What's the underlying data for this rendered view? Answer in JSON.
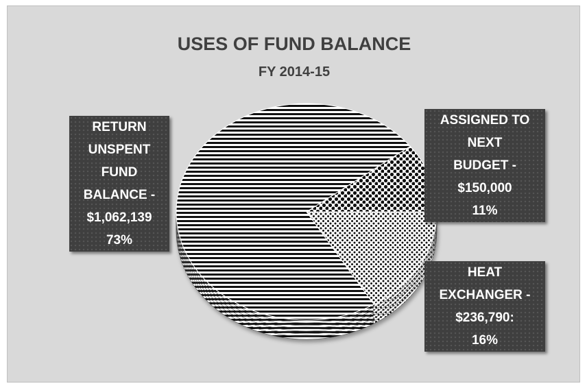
{
  "chart_data": {
    "type": "pie",
    "title": "USES OF FUND BALANCE",
    "subtitle": "FY 2014-15",
    "slices": [
      {
        "name": "RETURN UNSPENT FUND BALANCE",
        "value": 1062139,
        "percent": 73,
        "lines": [
          "RETURN",
          "UNSPENT",
          "FUND",
          "BALANCE -",
          "$1,062,139",
          "73%"
        ]
      },
      {
        "name": "ASSIGNED TO NEXT BUDGET",
        "value": 150000,
        "percent": 11,
        "lines": [
          "ASSIGNED TO",
          "NEXT",
          "BUDGET -",
          "$150,000",
          "11%"
        ]
      },
      {
        "name": "HEAT EXCHANGER",
        "value": 236790,
        "percent": 16,
        "lines": [
          "HEAT",
          "EXCHANGER -",
          "$236,790:",
          "16%"
        ]
      }
    ],
    "legend": "none",
    "data_labels": "callout boxes"
  },
  "colors": {
    "background": "#d9d9d9",
    "label_box": "#3f3f3f",
    "title_text": "#404040"
  }
}
